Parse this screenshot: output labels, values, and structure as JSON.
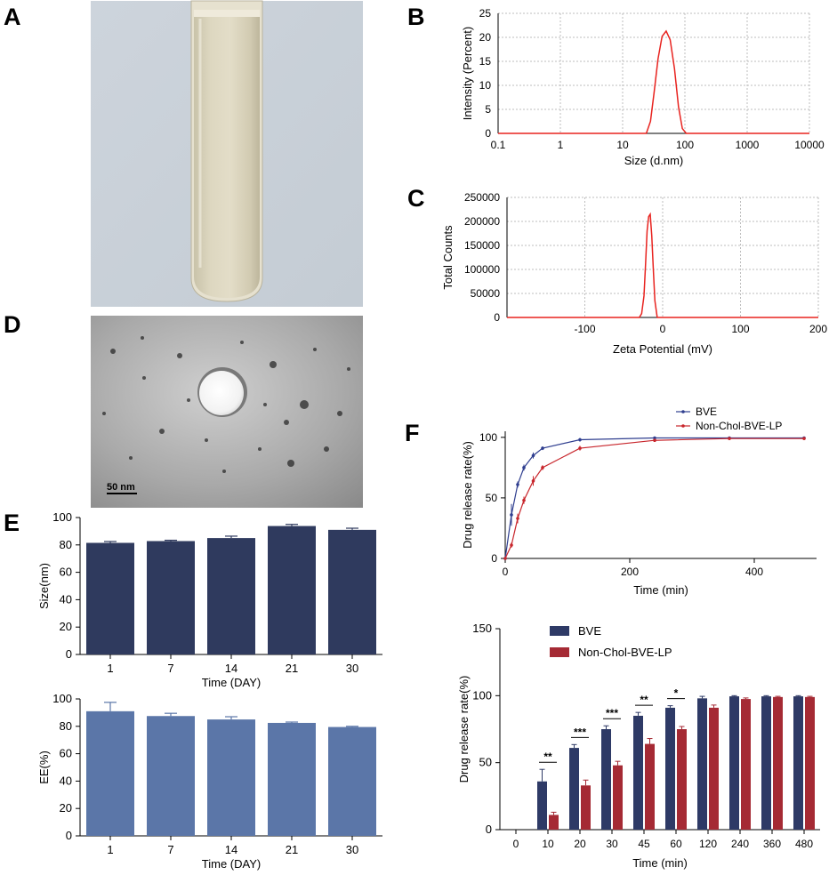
{
  "panels": {
    "A": "A",
    "B": "B",
    "C": "C",
    "D": "D",
    "E": "E",
    "F": "F"
  },
  "tem_scale_label": "50 nm",
  "colors": {
    "red_line": "#e8231f",
    "bve_line": "#2f3e8f",
    "lp_line": "#c8262c",
    "bar_dark": "#2f3a5e",
    "bar_light": "#5b76a8",
    "bar_bve": "#2e3a66",
    "bar_lp": "#a52a34",
    "grid": "#bdbdbd"
  },
  "chart_data": [
    {
      "id": "B",
      "type": "line",
      "xlabel": "Size (d.nm)",
      "ylabel": "Intensity (Percent)",
      "xscale": "log",
      "xlim": [
        0.1,
        10000
      ],
      "ylim": [
        0,
        25
      ],
      "xticks": [
        "0.1",
        "1",
        "10",
        "100",
        "1000",
        "10000"
      ],
      "yticks": [
        "0",
        "5",
        "10",
        "15",
        "20",
        "25"
      ],
      "grid": true,
      "x": [
        0.1,
        24,
        28,
        32,
        37,
        43,
        50,
        58,
        68,
        79,
        91,
        105,
        10000
      ],
      "y": [
        0,
        0,
        2.5,
        8.5,
        15.5,
        20.2,
        21.3,
        19.5,
        13.5,
        5.5,
        1.0,
        0,
        0
      ]
    },
    {
      "id": "C",
      "type": "line",
      "xlabel": "Zeta Potential (mV)",
      "ylabel": "Total Counts",
      "xlim": [
        -200,
        200
      ],
      "ylim": [
        0,
        250000
      ],
      "xticks": [
        "-100",
        "0",
        "100",
        "200"
      ],
      "yticks": [
        "0",
        "50000",
        "100000",
        "150000",
        "200000",
        "250000"
      ],
      "grid": true,
      "x": [
        -200,
        -30,
        -27,
        -24,
        -22,
        -20,
        -18,
        -16,
        -14,
        -12,
        -10,
        -7,
        200
      ],
      "y": [
        0,
        0,
        8000,
        45000,
        110000,
        180000,
        210000,
        215000,
        170000,
        100000,
        35000,
        0,
        0
      ]
    },
    {
      "id": "E-size",
      "type": "bar",
      "xlabel": "Time (DAY)",
      "ylabel": "Size(nm)",
      "ylim": [
        0,
        100
      ],
      "yticks": [
        "0",
        "20",
        "40",
        "60",
        "80",
        "100"
      ],
      "categories": [
        "1",
        "7",
        "14",
        "21",
        "30"
      ],
      "values": [
        81.5,
        82.8,
        85.0,
        93.8,
        91.0
      ],
      "errors": [
        1.0,
        0.6,
        1.4,
        1.2,
        1.2
      ]
    },
    {
      "id": "E-ee",
      "type": "bar",
      "xlabel": "Time (DAY)",
      "ylabel": "EE(%)",
      "ylim": [
        0,
        100
      ],
      "yticks": [
        "0",
        "20",
        "40",
        "60",
        "80",
        "100"
      ],
      "categories": [
        "1",
        "7",
        "14",
        "21",
        "30"
      ],
      "values": [
        91.0,
        87.5,
        85.0,
        82.5,
        79.5
      ],
      "errors": [
        6.5,
        2.0,
        2.0,
        0.6,
        0.5
      ]
    },
    {
      "id": "F-line",
      "type": "line",
      "xlabel": "Time (min)",
      "ylabel": "Drug release rate(%)",
      "xlim": [
        0,
        500
      ],
      "ylim": [
        0,
        105
      ],
      "xticks": [
        "0",
        "200",
        "400"
      ],
      "yticks": [
        "0",
        "50",
        "100"
      ],
      "legend": "top-right",
      "series": [
        {
          "name": "BVE",
          "x": [
            0,
            10,
            20,
            30,
            45,
            60,
            120,
            240,
            360,
            480
          ],
          "y": [
            0,
            36,
            61,
            75,
            85,
            91,
            98,
            99.5,
            99.5,
            99.5
          ],
          "err": [
            0,
            9,
            2.5,
            2.5,
            2.5,
            1.5,
            1.5,
            0.5,
            0.5,
            0.5
          ]
        },
        {
          "name": "Non-Chol-BVE-LP",
          "x": [
            0,
            10,
            20,
            30,
            45,
            60,
            120,
            240,
            360,
            480
          ],
          "y": [
            0,
            11,
            33,
            48,
            64,
            75,
            91,
            97.5,
            99,
            99
          ],
          "err": [
            0,
            2,
            4,
            3,
            4,
            2,
            2,
            0.8,
            0.5,
            0.5
          ]
        }
      ]
    },
    {
      "id": "F-bar",
      "type": "bar",
      "xlabel": "Time (min)",
      "ylabel": "Drug release rate(%)",
      "ylim": [
        0,
        150
      ],
      "yticks": [
        "0",
        "50",
        "100",
        "150"
      ],
      "categories": [
        "0",
        "10",
        "20",
        "30",
        "45",
        "60",
        "120",
        "240",
        "360",
        "480"
      ],
      "legend": "top-left",
      "series": [
        {
          "name": "BVE",
          "values": [
            0,
            36,
            61,
            75,
            85,
            91,
            98,
            99.5,
            99.5,
            99.5
          ],
          "errors": [
            0,
            9,
            2.5,
            2.5,
            2.5,
            1.5,
            1.5,
            0.5,
            0.5,
            0.5
          ]
        },
        {
          "name": "Non-Chol-BVE-LP",
          "values": [
            0,
            11,
            33,
            48,
            64,
            75,
            91,
            97.5,
            99,
            99
          ],
          "errors": [
            0,
            2,
            4,
            3,
            4,
            2,
            2,
            0.8,
            0.5,
            0.5
          ]
        }
      ],
      "significance": [
        {
          "category": "10",
          "label": "**"
        },
        {
          "category": "20",
          "label": "***"
        },
        {
          "category": "30",
          "label": "***"
        },
        {
          "category": "45",
          "label": "**"
        },
        {
          "category": "60",
          "label": "*"
        }
      ]
    }
  ]
}
